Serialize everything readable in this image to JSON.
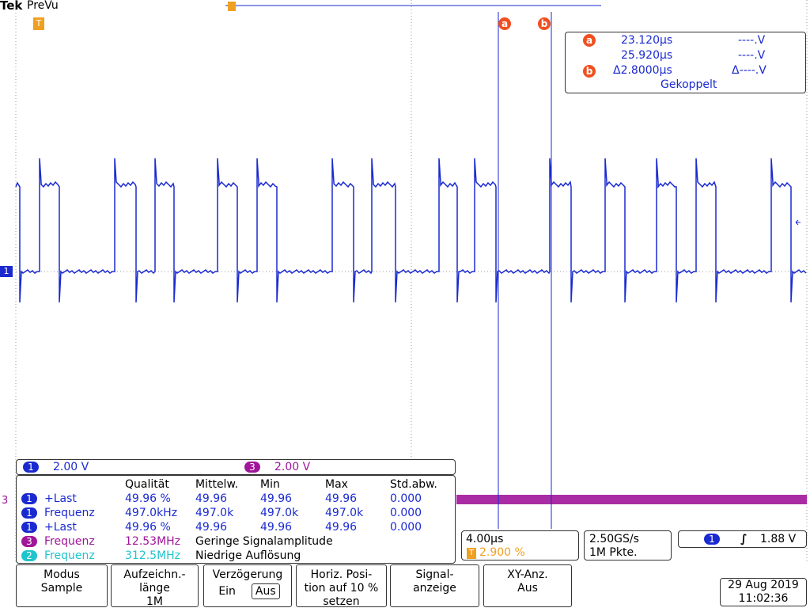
{
  "status": {
    "brand": "Tek",
    "mode": "PreVu",
    "trigger_flag": "T"
  },
  "cursors": {
    "a": "a",
    "b": "b",
    "a_time": "23.120µs",
    "a_volt": "----.V",
    "b_time": "25.920µs",
    "b_volt": "----.V",
    "delta_time": "Δ2.8000µs",
    "delta_volt": "Δ----.V",
    "mode": "Gekoppelt"
  },
  "markers": {
    "ch1": "1",
    "ch3": "3"
  },
  "scales": [
    {
      "channel": "1",
      "value": "2.00 V",
      "color": "#1a2ad0"
    },
    {
      "channel": "3",
      "value": "2.00 V",
      "color": "#a0159a"
    }
  ],
  "measurements": {
    "headers": [
      "Qualität",
      "Mittelw.",
      "Min",
      "Max",
      "Std.abw."
    ],
    "rows": [
      {
        "channel": "1",
        "name": "+Last",
        "color": "#1a2ad0",
        "values": [
          "49.96 %",
          "49.96",
          "49.96",
          "49.96",
          "0.000"
        ]
      },
      {
        "channel": "1",
        "name": "Frequenz",
        "color": "#1a2ad0",
        "values": [
          "497.0kHz",
          "497.0k",
          "497.0k",
          "497.0k",
          "0.000"
        ]
      },
      {
        "channel": "1",
        "name": "+Last",
        "color": "#1a2ad0",
        "values": [
          "49.96 %",
          "49.96",
          "49.96",
          "49.96",
          "0.000"
        ]
      },
      {
        "channel": "3",
        "name": "Frequenz",
        "color": "#a0159a",
        "values": [
          "12.53MHz"
        ],
        "note": "Geringe Signalamplitude"
      },
      {
        "channel": "2",
        "name": "Frequenz",
        "color": "#20c4cc",
        "values": [
          "312.5MHz"
        ],
        "note": "Niedrige Auflösung"
      }
    ]
  },
  "timebase": {
    "scale": "4.00µs",
    "trigger_flag": "T",
    "position": "2.900 %"
  },
  "acquisition": {
    "rate": "2.50GS/s",
    "length": "1M Pkte."
  },
  "trigger": {
    "channel": "1",
    "level": "1.88 V"
  },
  "menu": [
    {
      "lines": [
        "Modus",
        "Sample"
      ]
    },
    {
      "lines": [
        "Aufzeichn.-",
        "länge",
        "1M"
      ]
    },
    {
      "lines": [
        "Verzögerung"
      ],
      "options": [
        "Ein",
        "Aus"
      ]
    },
    {
      "lines": [
        "Horiz. Posi-",
        "tion auf 10 %",
        "setzen"
      ]
    },
    {
      "lines": [
        "Signal-",
        "anzeige"
      ]
    },
    {
      "lines": [
        "XY-Anz.",
        "Aus"
      ]
    }
  ],
  "datetime": {
    "date": "29 Aug 2019",
    "time": "11:02:36"
  }
}
